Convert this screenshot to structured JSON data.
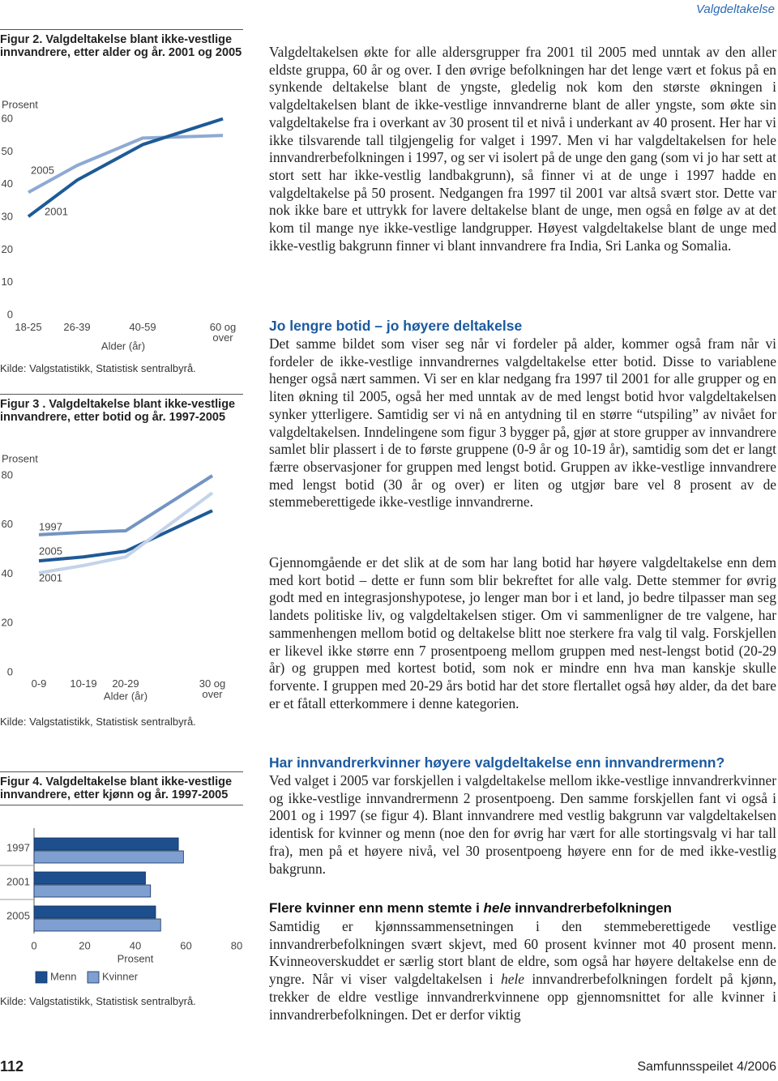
{
  "header": {
    "section": "Valgdeltakelse"
  },
  "chart_data": [
    {
      "type": "line",
      "title": "Figur 2. Valgdeltakelse blant ikke-vestlige innvandrere, etter alder og år. 2001 og 2005",
      "ylabel": "Prosent",
      "xlabel": "Alder (år)",
      "categories": [
        "18-25",
        "26-39",
        "40-59",
        "60 og over"
      ],
      "series": [
        {
          "name": "2005",
          "color": "#8eaad3",
          "values": [
            37.6,
            45.8,
            54.2,
            55
          ]
        },
        {
          "name": "2001",
          "color": "#1e5a96",
          "values": [
            30.2,
            41.3,
            52.2,
            60.1
          ]
        }
      ],
      "ylim": [
        0,
        60
      ],
      "yticks": [
        0,
        10,
        20,
        30,
        40,
        50,
        60
      ],
      "grid": false,
      "source": "Kilde: Valgstatistikk, Statistisk sentralbyrå."
    },
    {
      "type": "line",
      "title": "Figur 3 . Valgdeltakelse blant ikke-vestlige innvandrere, etter botid og år. 1997-2005",
      "ylabel": "Prosent",
      "xlabel": "Alder (år)",
      "categories": [
        "0-9",
        "10-19",
        "20-29",
        "30 og over"
      ],
      "series": [
        {
          "name": "1997",
          "color": "#7394c3",
          "values": [
            56,
            57,
            57.6,
            80
          ]
        },
        {
          "name": "2005",
          "color": "#1e5a96",
          "values": [
            45.4,
            47,
            49.3,
            65.8
          ]
        },
        {
          "name": "2001",
          "color": "#c3d3ea",
          "values": [
            40.5,
            43.5,
            47,
            73
          ]
        }
      ],
      "ylim": [
        0,
        80
      ],
      "yticks": [
        0,
        20,
        40,
        60,
        80
      ],
      "grid": false,
      "source": "Kilde: Valgstatistikk, Statistisk sentralbyrå."
    },
    {
      "type": "hbar",
      "title": "Figur 4. Valgdeltakelse blant ikke-vestlige innvandrere, etter kjønn og år. 1997-2005",
      "xlabel": "Prosent",
      "categories": [
        "1997",
        "2001",
        "2005"
      ],
      "series": [
        {
          "name": "Menn",
          "color": "#1d4f8f",
          "values": [
            57,
            44,
            48
          ]
        },
        {
          "name": "Kvinner",
          "color": "#7f9fd0",
          "values": [
            59,
            46,
            50
          ]
        }
      ],
      "xlim": [
        0,
        80
      ],
      "xticks": [
        0,
        20,
        40,
        60,
        80
      ],
      "grid": false,
      "source": "Kilde: Valgstatistikk, Statistisk sentralbyrå."
    }
  ],
  "article": {
    "p1": "Valgdeltakelsen økte for alle aldersgrupper fra 2001 til 2005 med unntak av den aller eldste gruppa, 60 år og over. I den øvrige befolkningen har det lenge vært et fokus på en synkende deltakelse blant de yngste, gledelig nok kom den største økningen i valgdeltakelsen blant de ikke-vestlige innvandrerne blant de aller yngste, som økte sin valgdeltakelse fra i overkant av 30 prosent til et nivå i underkant av 40 prosent. Her har vi ikke tilsvarende tall tilgjengelig for valget i 1997. Men vi har valgdeltakelsen for hele innvandrerbefolkningen i 1997, og ser vi isolert på de unge den gang (som vi jo har sett at stort sett har ikke-vestlig landbakgrunn), så finner vi at de unge i 1997 hadde en valgdeltakelse på 50 prosent. Nedgangen fra 1997 til 2001 var altså svært stor. Dette var nok ikke bare et uttrykk for lavere deltakelse blant de unge, men også en følge av at det kom til mange nye ikke-vestlige landgrupper. Høyest valgdeltakelse blant de unge med ikke-vestlig bakgrunn finner vi blant innvandrere fra India, Sri Lanka og Somalia.",
    "h1": "Jo lengre botid – jo høyere deltakelse",
    "p2": "Det samme bildet som viser seg når vi fordeler på alder, kommer også fram når vi fordeler de ikke-vestlige innvandrernes valgdeltakelse etter botid. Disse to variablene henger også nært sammen. Vi ser en klar nedgang fra 1997 til 2001 for alle grupper og en liten økning til 2005, også her med unntak av de med lengst botid hvor valgdeltakelsen synker ytterligere. Samtidig ser vi nå en antydning til en større “utspiling” av nivået for valgdeltakelsen. Inndelingene som figur 3 bygger på, gjør at store grupper av innvandrere samlet blir plassert i de to første gruppene (0-9 år og 10-19 år), samtidig som det er langt færre observasjoner for gruppen med lengst botid. Gruppen av ikke-vestlige innvandrere med lengst botid (30 år og over) er liten og utgjør bare vel 8 prosent av de stemmeberettigede ikke-vestlige innvandrerne.",
    "p3": "Gjennomgående er det slik at de som har lang botid har høyere valgdeltakelse enn dem med kort botid – dette er funn som blir bekreftet for alle valg. Dette stemmer for øvrig godt med en integrasjonshypotese, jo lenger man bor i et land, jo bedre tilpasser man seg landets politiske liv, og valgdeltakelsen stiger. Om vi sammenligner de tre valgene, har sammenhengen mellom botid og deltakelse blitt noe sterkere fra valg til valg. Forskjellen er likevel ikke større enn 7 prosentpoeng mellom gruppen med nest-lengst botid (20-29 år) og gruppen med kortest botid, som nok er mindre enn hva man kanskje skulle forvente. I gruppen med 20-29 års botid har det store flertallet også høy alder, da det bare er et fåtall etterkommere i denne kategorien.",
    "h2": "Har innvandrerkvinner høyere valgdeltakelse enn innvandrermenn?",
    "p4": "Ved valget i 2005 var forskjellen i valgdeltakelse mellom ikke-vestlige innvandrerkvinner og ikke-vestlige innvandrermenn 2 prosentpoeng. Den samme forskjellen fant vi også i 2001 og i 1997 (se figur 4). Blant innvandrere med vestlig bakgrunn var valgdeltakelsen identisk for kvinner og menn (noe den for øvrig har vært for alle stortingsvalg vi har tall fra), men på et høyere nivå, vel 30 prosentpoeng høyere enn for de med ikke-vestlig bakgrunn.",
    "h3": [
      "Flere kvinner enn menn stemte i ",
      "hele",
      " innvandrerbefolkningen"
    ],
    "p5": [
      "Samtidig er kjønnssammensetningen i den stemmeberettigede vestlige innvandrerbefolkningen svært skjevt, med 60 prosent kvinner mot 40 prosent menn. Kvinneoverskuddet er særlig stort blant de eldre, som også har høyere deltakelse enn de yngre. Når vi viser valgdeltakelsen i ",
      "hele",
      " innvandrerbefolkningen fordelt på kjønn, trekker de eldre vestlige innvandrerkvinnene opp gjennomsnittet for alle kvinner i innvandrerbefolkningen. Det er derfor viktig"
    ]
  },
  "footer": {
    "page": "112",
    "journal": "Samfunnsspeilet 4/2006"
  }
}
